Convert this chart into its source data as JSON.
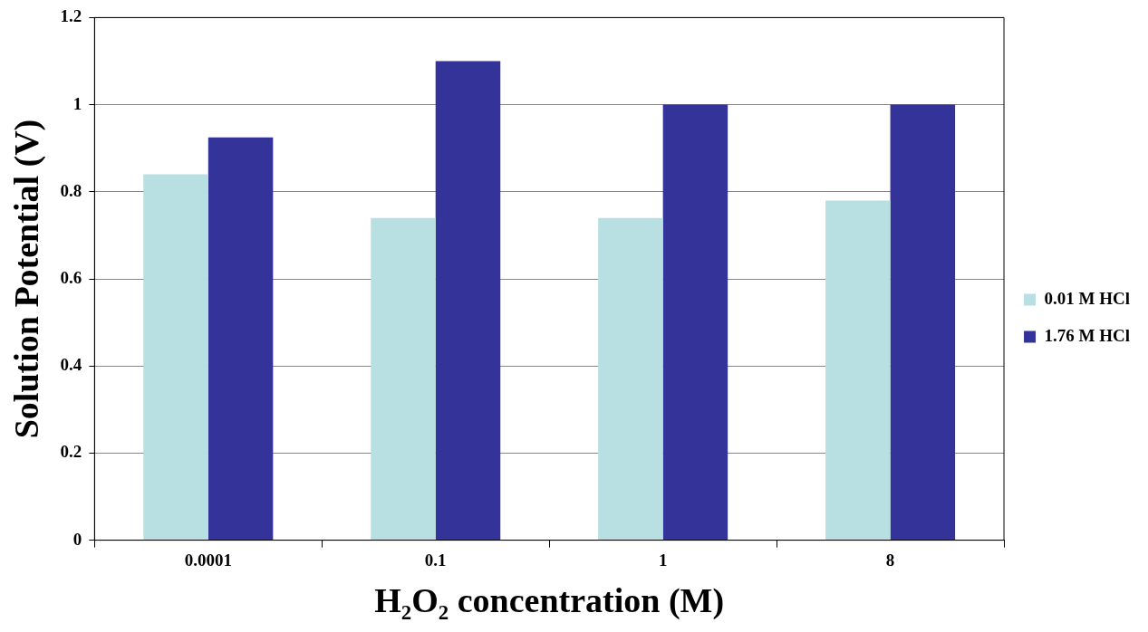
{
  "chart_data": {
    "type": "bar",
    "xlabel": "H₂O₂ concentration (M)",
    "ylabel": "Solution Potential (V)",
    "categories": [
      "0.0001",
      "0.1",
      "1",
      "8"
    ],
    "series": [
      {
        "name": "0.01 M HCl",
        "color": "#b8dfe2",
        "values": [
          0.84,
          0.74,
          0.74,
          0.78
        ]
      },
      {
        "name": "1.76 M HCl",
        "color": "#343399",
        "values": [
          0.925,
          1.1,
          1,
          1
        ]
      }
    ],
    "ylim": [
      0,
      1.2
    ],
    "yticks": [
      0,
      0.2,
      0.4,
      0.6,
      0.8,
      1,
      1.2
    ],
    "grid": "y",
    "legend": "right"
  }
}
